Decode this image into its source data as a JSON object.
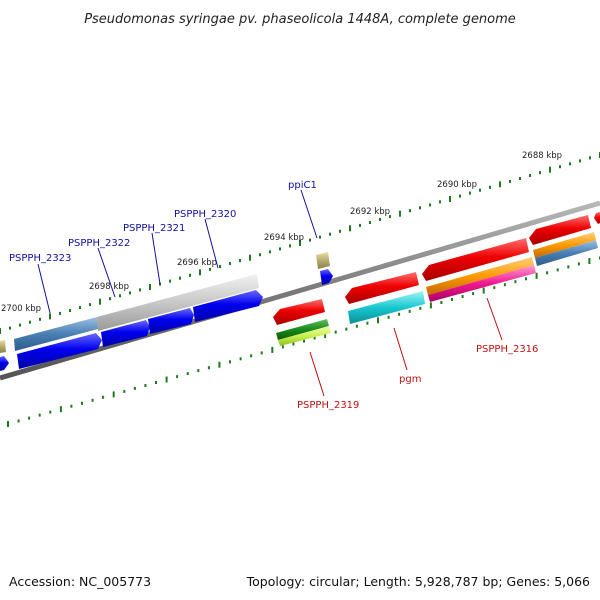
{
  "title": "Pseudomonas syringae pv. phaseolicola 1448A, complete genome",
  "accession": "Accession: NC_005773",
  "summary": "Topology: circular; Length: 5,928,787 bp; Genes: 5,066",
  "scale_labels": [
    "2688 kbp",
    "2690 kbp",
    "2692 kbp",
    "2694 kbp",
    "2696 kbp",
    "2698 kbp",
    "2700 kbp"
  ],
  "gene_labels": {
    "pspph_2323": "PSPPH_2323",
    "pspph_2322": "PSPPH_2322",
    "pspph_2321": "PSPPH_2321",
    "pspph_2320": "PSPPH_2320",
    "ppic1": "ppiC1",
    "pspph_2319": "PSPPH_2319",
    "pgm": "pgm",
    "pspph_2316": "PSPPH_2316"
  },
  "colors": {
    "forward_label": "#1010a0",
    "reverse_label": "#c01010",
    "tick": "#1f7a1f",
    "backbone": "#808080"
  }
}
